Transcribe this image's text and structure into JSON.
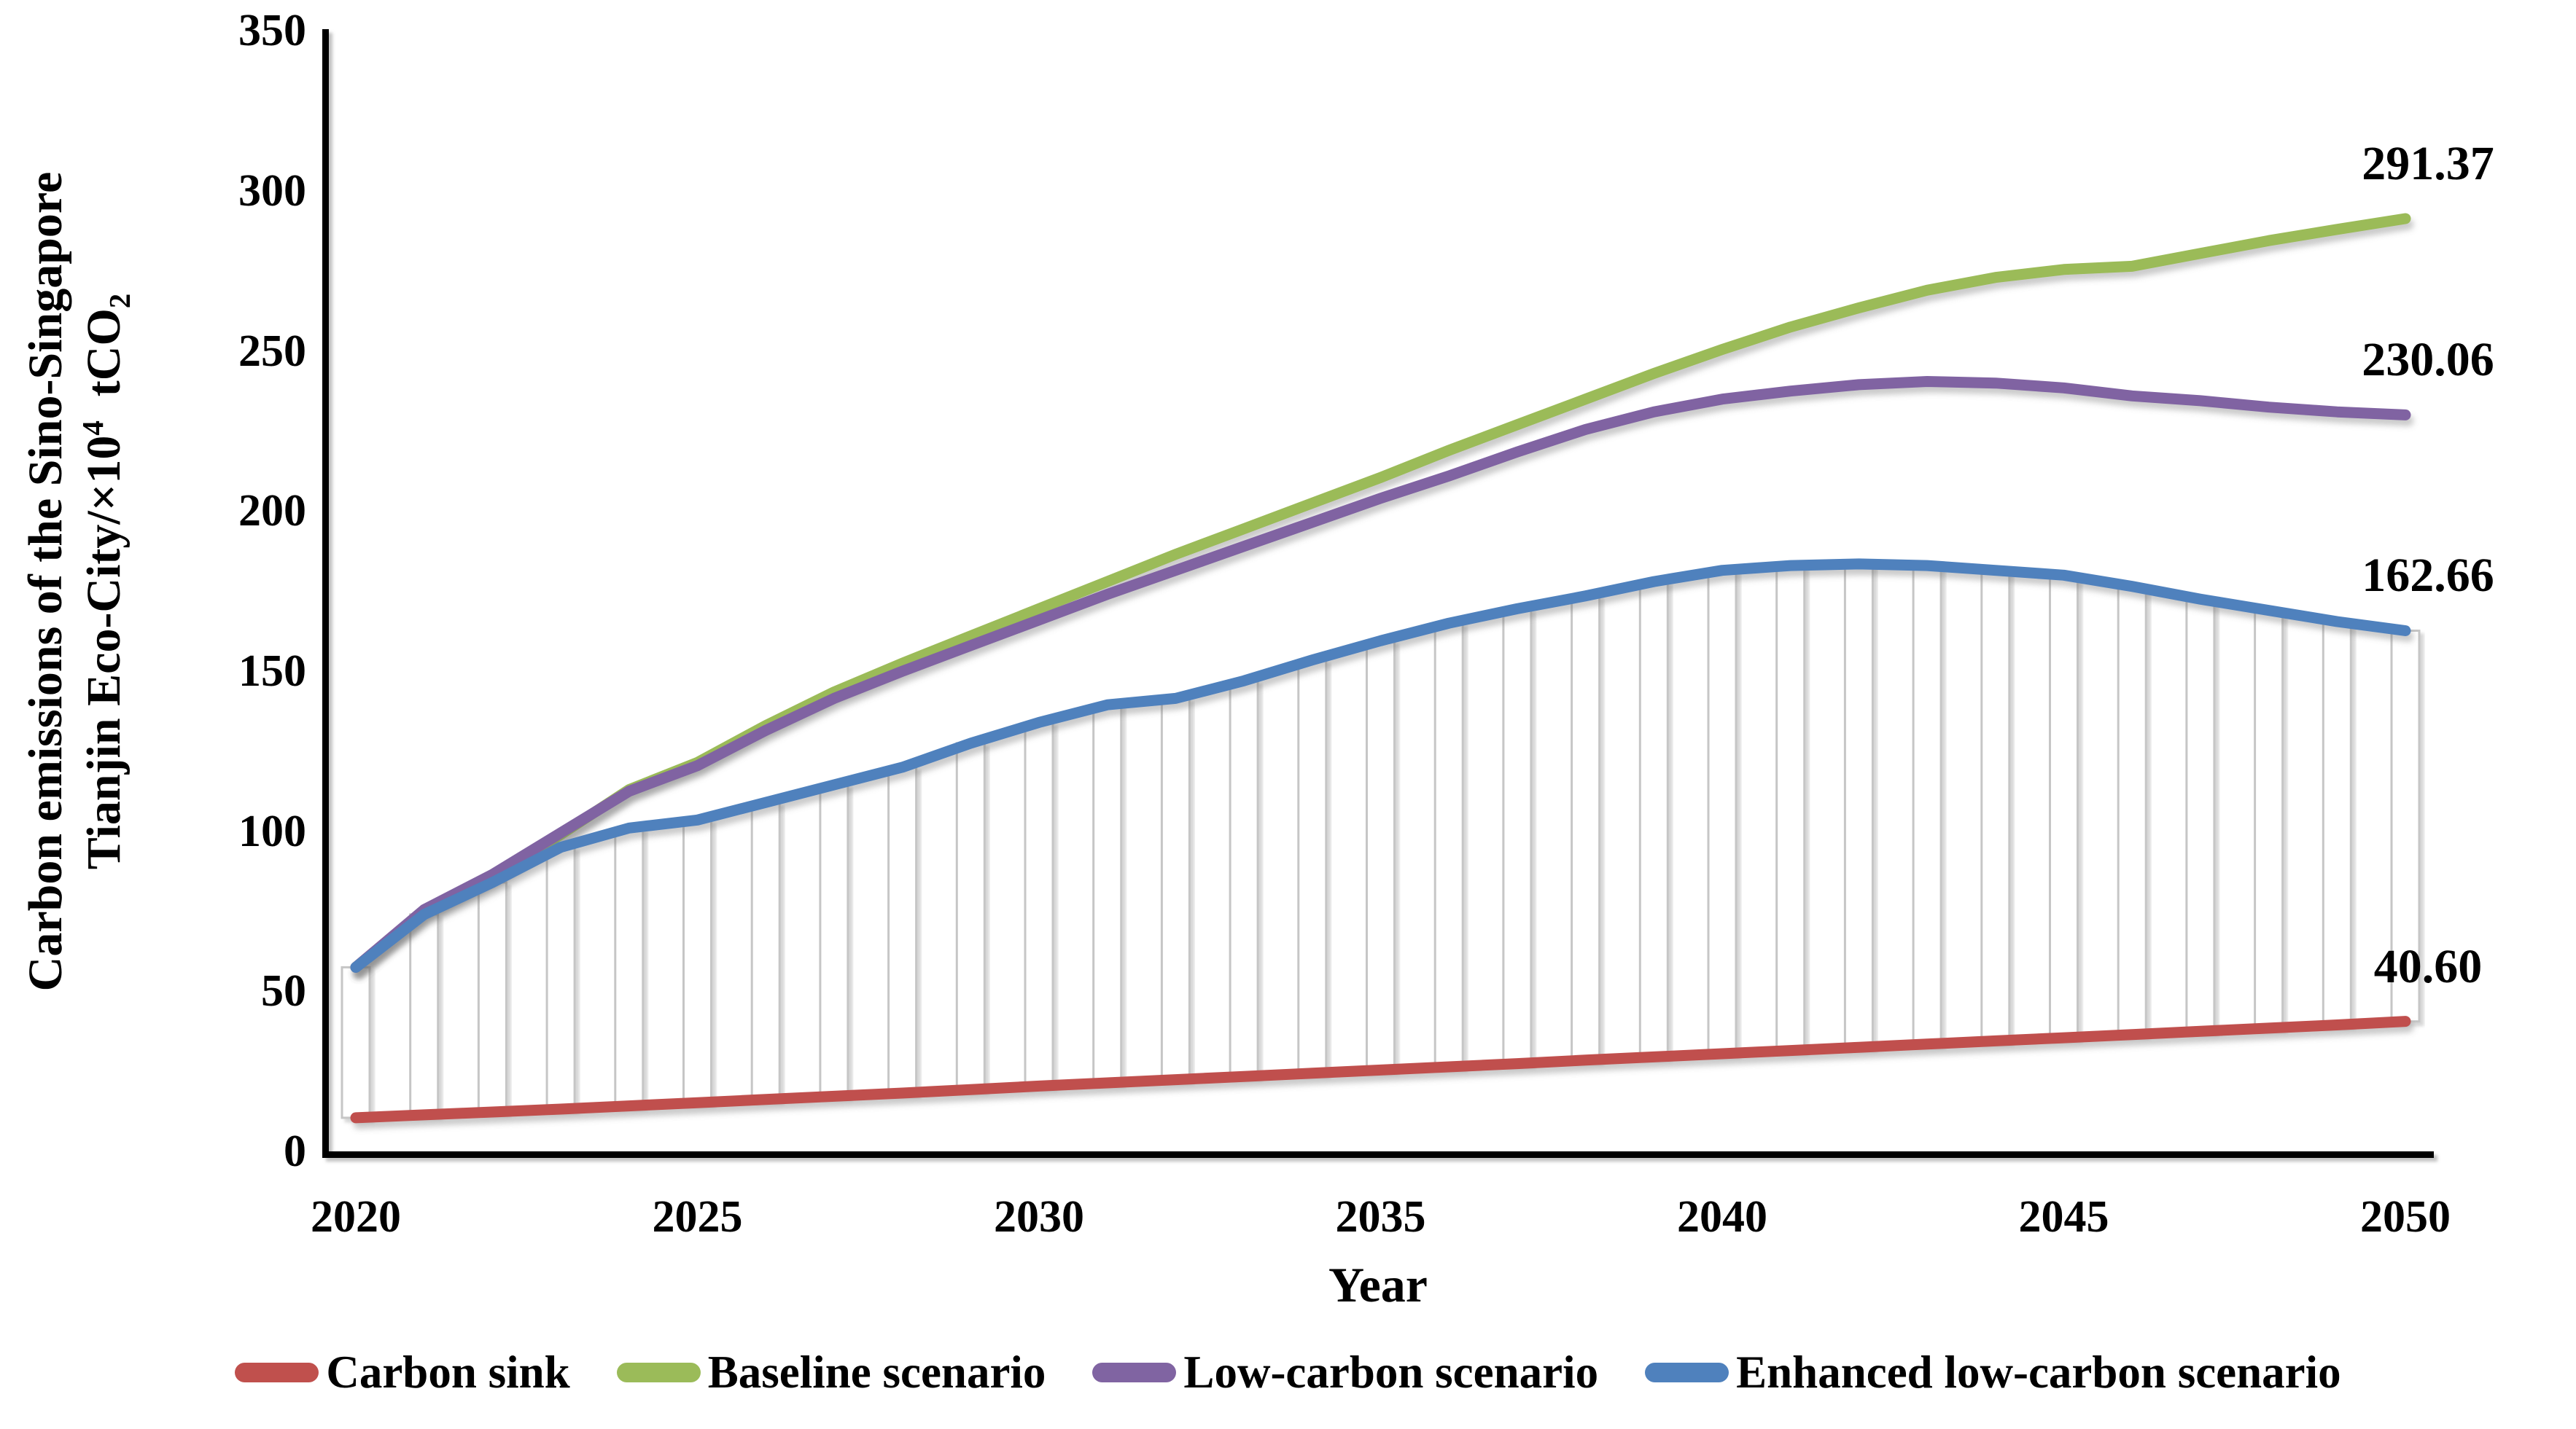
{
  "chart_data": {
    "type": "line",
    "title": "",
    "xlabel": "Year",
    "ylabel": {
      "line1": "Carbon emissions of the Sino-Singapore",
      "line2_pre": "Tianjin Eco-City/×10",
      "line2_sup": "4",
      "line2_mid": "  tCO",
      "line2_sub": "2"
    },
    "x": [
      2020,
      2021,
      2022,
      2023,
      2024,
      2025,
      2026,
      2027,
      2028,
      2029,
      2030,
      2031,
      2032,
      2033,
      2034,
      2035,
      2036,
      2037,
      2038,
      2039,
      2040,
      2041,
      2042,
      2043,
      2044,
      2045,
      2046,
      2047,
      2048,
      2049,
      2050
    ],
    "x_ticks": [
      2020,
      2025,
      2030,
      2035,
      2040,
      2045,
      2050
    ],
    "y_ticks": [
      0,
      50,
      100,
      150,
      200,
      250,
      300,
      350
    ],
    "ylim": [
      0,
      350
    ],
    "grid": false,
    "legend_position": "bottom",
    "series": [
      {
        "name": "Carbon sink",
        "color": "#C0504D",
        "end_label": "40.60",
        "values": [
          10.5,
          11.4,
          12.3,
          13.2,
          14.2,
          15.2,
          16.2,
          17.2,
          18.2,
          19.3,
          20.4,
          21.4,
          22.4,
          23.4,
          24.4,
          25.4,
          26.4,
          27.4,
          28.5,
          29.5,
          30.5,
          31.5,
          32.5,
          33.5,
          34.5,
          35.5,
          36.5,
          37.5,
          38.5,
          39.5,
          40.6
        ]
      },
      {
        "name": "Baseline scenario",
        "color": "#9BBB59",
        "end_label": "291.37",
        "values": [
          57.5,
          75,
          86,
          99,
          113,
          121.5,
          133,
          143.5,
          152.5,
          161,
          169.5,
          178,
          186.5,
          194.5,
          202.5,
          210.5,
          219,
          227,
          235,
          243,
          250.5,
          257.5,
          263.5,
          269,
          273,
          275.5,
          276.5,
          280.5,
          284.5,
          288,
          291.37
        ]
      },
      {
        "name": "Low-carbon scenario",
        "color": "#8064A2",
        "end_label": "230.06",
        "values": [
          57.5,
          75.5,
          86.5,
          99.5,
          112.5,
          120.5,
          131.5,
          141.5,
          150,
          158,
          166,
          174,
          181.5,
          189,
          196.5,
          204,
          211,
          218.5,
          225.5,
          231,
          235,
          237.5,
          239.5,
          240.5,
          240,
          238.5,
          236,
          234.5,
          232.5,
          231,
          230.06
        ]
      },
      {
        "name": "Enhanced low-carbon scenario",
        "color": "#4F81BD",
        "end_label": "162.66",
        "values": [
          57.5,
          74,
          84,
          95,
          101,
          103.5,
          109,
          114.5,
          120,
          127.5,
          134,
          139.5,
          141.5,
          147,
          153.5,
          159.5,
          165,
          169.5,
          173.5,
          178,
          181.5,
          183,
          183.5,
          183,
          181.5,
          180,
          176.5,
          172.5,
          169,
          165.5,
          162.66
        ]
      }
    ],
    "updown_bars": {
      "between": [
        "Carbon sink",
        "Enhanced low-carbon scenario"
      ],
      "fill": "#FFFFFF",
      "stroke": "#C6C6C6"
    }
  }
}
